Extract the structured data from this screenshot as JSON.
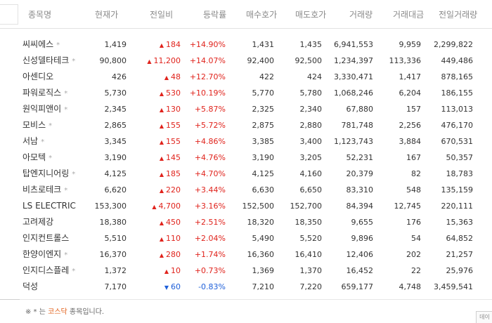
{
  "columns": {
    "name": "종목명",
    "price": "현재가",
    "change": "전일비",
    "rate": "등락률",
    "bid": "매수호가",
    "ask": "매도호가",
    "volume": "거래량",
    "amount": "거래대금",
    "prev_volume": "전일거래량"
  },
  "kosdaq_mark": "*",
  "rows": [
    {
      "name": "씨씨에스",
      "kosdaq": true,
      "price": "1,419",
      "dir": "up",
      "change": "184",
      "rate": "+14.90%",
      "bid": "1,431",
      "ask": "1,435",
      "volume": "6,941,553",
      "amount": "9,959",
      "prev_volume": "2,299,822"
    },
    {
      "name": "신성델타테크",
      "kosdaq": true,
      "price": "90,800",
      "dir": "up",
      "change": "11,200",
      "rate": "+14.07%",
      "bid": "92,400",
      "ask": "92,500",
      "volume": "1,234,397",
      "amount": "113,336",
      "prev_volume": "449,486"
    },
    {
      "name": "아센디오",
      "kosdaq": false,
      "price": "426",
      "dir": "up",
      "change": "48",
      "rate": "+12.70%",
      "bid": "422",
      "ask": "424",
      "volume": "3,330,471",
      "amount": "1,417",
      "prev_volume": "878,165"
    },
    {
      "name": "파워로직스",
      "kosdaq": true,
      "price": "5,730",
      "dir": "up",
      "change": "530",
      "rate": "+10.19%",
      "bid": "5,770",
      "ask": "5,780",
      "volume": "1,068,246",
      "amount": "6,204",
      "prev_volume": "186,155"
    },
    {
      "name": "원익피앤이",
      "kosdaq": true,
      "price": "2,345",
      "dir": "up",
      "change": "130",
      "rate": "+5.87%",
      "bid": "2,325",
      "ask": "2,340",
      "volume": "67,880",
      "amount": "157",
      "prev_volume": "113,013"
    },
    {
      "name": "모비스",
      "kosdaq": true,
      "price": "2,865",
      "dir": "up",
      "change": "155",
      "rate": "+5.72%",
      "bid": "2,875",
      "ask": "2,880",
      "volume": "781,748",
      "amount": "2,256",
      "prev_volume": "476,170"
    },
    {
      "name": "서남",
      "kosdaq": true,
      "price": "3,345",
      "dir": "up",
      "change": "155",
      "rate": "+4.86%",
      "bid": "3,385",
      "ask": "3,400",
      "volume": "1,123,743",
      "amount": "3,884",
      "prev_volume": "670,531"
    },
    {
      "name": "아모텍",
      "kosdaq": true,
      "price": "3,190",
      "dir": "up",
      "change": "145",
      "rate": "+4.76%",
      "bid": "3,190",
      "ask": "3,205",
      "volume": "52,231",
      "amount": "167",
      "prev_volume": "50,357"
    },
    {
      "name": "탑엔지니어링",
      "kosdaq": true,
      "price": "4,125",
      "dir": "up",
      "change": "185",
      "rate": "+4.70%",
      "bid": "4,125",
      "ask": "4,160",
      "volume": "20,379",
      "amount": "82",
      "prev_volume": "18,783"
    },
    {
      "name": "비츠로테크",
      "kosdaq": true,
      "price": "6,620",
      "dir": "up",
      "change": "220",
      "rate": "+3.44%",
      "bid": "6,630",
      "ask": "6,650",
      "volume": "83,310",
      "amount": "548",
      "prev_volume": "135,159"
    },
    {
      "name": "LS ELECTRIC",
      "kosdaq": false,
      "price": "153,300",
      "dir": "up",
      "change": "4,700",
      "rate": "+3.16%",
      "bid": "152,500",
      "ask": "152,700",
      "volume": "84,394",
      "amount": "12,745",
      "prev_volume": "220,111"
    },
    {
      "name": "고려제강",
      "kosdaq": false,
      "price": "18,380",
      "dir": "up",
      "change": "450",
      "rate": "+2.51%",
      "bid": "18,320",
      "ask": "18,350",
      "volume": "9,655",
      "amount": "176",
      "prev_volume": "15,363"
    },
    {
      "name": "인지컨트롤스",
      "kosdaq": false,
      "price": "5,510",
      "dir": "up",
      "change": "110",
      "rate": "+2.04%",
      "bid": "5,490",
      "ask": "5,520",
      "volume": "9,896",
      "amount": "54",
      "prev_volume": "64,852"
    },
    {
      "name": "한양이엔지",
      "kosdaq": true,
      "price": "16,370",
      "dir": "up",
      "change": "280",
      "rate": "+1.74%",
      "bid": "16,360",
      "ask": "16,410",
      "volume": "12,406",
      "amount": "202",
      "prev_volume": "21,257"
    },
    {
      "name": "인지디스플레",
      "kosdaq": true,
      "price": "1,372",
      "dir": "up",
      "change": "10",
      "rate": "+0.73%",
      "bid": "1,369",
      "ask": "1,370",
      "volume": "16,452",
      "amount": "22",
      "prev_volume": "25,976"
    },
    {
      "name": "덕성",
      "kosdaq": false,
      "price": "7,170",
      "dir": "down",
      "change": "60",
      "rate": "-0.83%",
      "bid": "7,210",
      "ask": "7,220",
      "volume": "659,177",
      "amount": "4,748",
      "prev_volume": "3,459,541"
    }
  ],
  "footer": {
    "prefix": "※ * 는",
    "kosdaq": "코스닥",
    "suffix": "종목입니다."
  },
  "edge_button": "데이"
}
